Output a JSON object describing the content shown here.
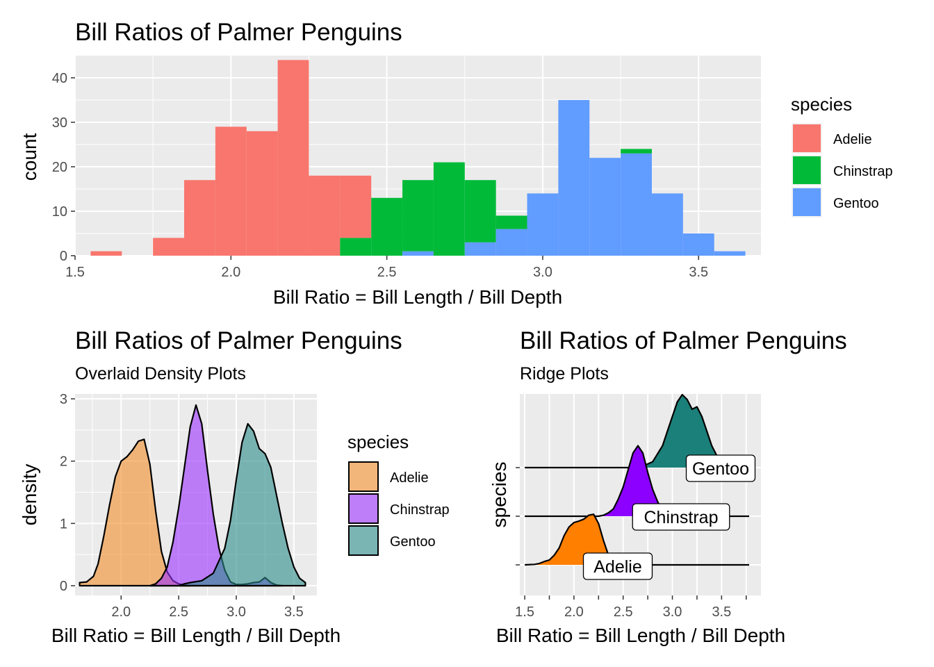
{
  "colors": {
    "panel_bg": "#ebebeb",
    "grid_major": "#ffffff",
    "adelie_hist": "#F8766D",
    "chinstrap_hist": "#00BA38",
    "gentoo_hist": "#619CFF",
    "adelie_density": "#F28E2B",
    "chinstrap_density": "#9B30FF",
    "gentoo_density": "#2A8C8A",
    "adelie_ridge": "#FF7F00",
    "chinstrap_ridge": "#8B00FF",
    "gentoo_ridge": "#1B8079"
  },
  "chart_data": [
    {
      "type": "bar",
      "subtype": "stacked histogram",
      "title": "Bill Ratios of Palmer Penguins",
      "subtitle": "",
      "xlabel": "Bill Ratio = Bill Length / Bill Depth",
      "ylabel": "count",
      "xlim": [
        1.5,
        3.7
      ],
      "ylim": [
        0,
        45
      ],
      "x_ticks": [
        1.5,
        2.0,
        2.5,
        3.0,
        3.5
      ],
      "x_tick_labels": [
        "1.5",
        "2.0",
        "2.5",
        "3.0",
        "3.5"
      ],
      "y_ticks": [
        0,
        10,
        20,
        30,
        40
      ],
      "y_tick_labels": [
        "0",
        "10",
        "20",
        "30",
        "40"
      ],
      "grid": true,
      "legend_title": "species",
      "legend_position": "right",
      "bin_edges": [
        1.55,
        1.65,
        1.75,
        1.85,
        1.95,
        2.05,
        2.15,
        2.25,
        2.35,
        2.45,
        2.55,
        2.65,
        2.75,
        2.85,
        2.95,
        3.05,
        3.15,
        3.25,
        3.35,
        3.45,
        3.55,
        3.65
      ],
      "series": [
        {
          "name": "Adelie",
          "values": [
            1,
            0,
            4,
            17,
            29,
            28,
            44,
            18,
            14,
            0,
            0,
            0,
            0,
            0,
            0,
            0,
            0,
            0,
            0,
            0,
            0
          ]
        },
        {
          "name": "Chinstrap",
          "values": [
            0,
            0,
            0,
            0,
            0,
            0,
            0,
            0,
            4,
            13,
            16,
            21,
            14,
            3,
            0,
            0,
            0,
            1,
            0,
            0,
            0
          ]
        },
        {
          "name": "Gentoo",
          "values": [
            0,
            0,
            0,
            0,
            0,
            0,
            0,
            0,
            0,
            0,
            1,
            0,
            3,
            6,
            14,
            35,
            22,
            23,
            14,
            5,
            1
          ]
        }
      ]
    },
    {
      "type": "area",
      "subtype": "overlaid density",
      "title": "Bill Ratios of Palmer Penguins",
      "subtitle": "Overlaid Density Plots",
      "xlabel": "Bill Ratio = Bill Length / Bill Depth",
      "ylabel": "density",
      "xlim": [
        1.6,
        3.7
      ],
      "ylim": [
        0,
        3
      ],
      "x_ticks": [
        2.0,
        2.5,
        3.0,
        3.5
      ],
      "x_tick_labels": [
        "2.0",
        "2.5",
        "3.0",
        "3.5"
      ],
      "y_ticks": [
        0,
        1,
        2,
        3
      ],
      "y_tick_labels": [
        "0",
        "1",
        "2",
        "3"
      ],
      "grid": true,
      "legend_title": "species",
      "legend_position": "right",
      "series": [
        {
          "name": "Adelie",
          "x": [
            1.64,
            1.7,
            1.76,
            1.8,
            1.85,
            1.9,
            1.95,
            2.0,
            2.05,
            2.1,
            2.15,
            2.2,
            2.25,
            2.3,
            2.35,
            2.4,
            2.45,
            2.5,
            2.55,
            2.6
          ],
          "y": [
            0.05,
            0.06,
            0.15,
            0.35,
            0.8,
            1.3,
            1.75,
            2.0,
            2.07,
            2.18,
            2.32,
            2.35,
            1.95,
            1.2,
            0.55,
            0.22,
            0.08,
            0.03,
            0.01,
            0
          ]
        },
        {
          "name": "Chinstrap",
          "x": [
            2.25,
            2.3,
            2.35,
            2.4,
            2.45,
            2.5,
            2.55,
            2.6,
            2.65,
            2.7,
            2.75,
            2.8,
            2.85,
            2.9,
            2.95,
            3.0,
            3.05,
            3.1,
            3.15,
            3.2,
            3.25,
            3.3,
            3.35,
            3.4
          ],
          "y": [
            0,
            0.03,
            0.12,
            0.3,
            0.7,
            1.25,
            1.9,
            2.55,
            2.9,
            2.6,
            1.85,
            1.15,
            0.6,
            0.25,
            0.06,
            0.02,
            0.02,
            0.03,
            0.05,
            0.06,
            0.13,
            0.05,
            0.01,
            0
          ]
        },
        {
          "name": "Gentoo",
          "x": [
            2.5,
            2.55,
            2.6,
            2.7,
            2.8,
            2.9,
            2.95,
            3.0,
            3.05,
            3.1,
            3.15,
            3.2,
            3.25,
            3.3,
            3.35,
            3.4,
            3.45,
            3.5,
            3.55,
            3.6
          ],
          "y": [
            0,
            0.03,
            0.05,
            0.08,
            0.2,
            0.6,
            1.05,
            1.7,
            2.3,
            2.6,
            2.48,
            2.2,
            2.12,
            1.9,
            1.45,
            1.0,
            0.6,
            0.3,
            0.12,
            0.05
          ]
        }
      ]
    },
    {
      "type": "area",
      "subtype": "ridgeline",
      "title": "Bill Ratios of Palmer Penguins",
      "subtitle": "Ridge Plots",
      "xlabel": "Bill Ratio = Bill Length / Bill Depth",
      "ylabel": "species",
      "xlim": [
        1.45,
        3.9
      ],
      "x_ticks": [
        1.5,
        2.0,
        2.5,
        3.0,
        3.5
      ],
      "x_tick_labels": [
        "1.5",
        "2.0",
        "2.5",
        "3.0",
        "3.5"
      ],
      "minor_x_ticks": [
        1.75,
        2.25,
        2.75,
        3.25,
        3.75
      ],
      "minor_x_tick_labels": [
        "",
        "",
        "",
        "",
        ""
      ],
      "categories": [
        "Adelie",
        "Chinstrap",
        "Gentoo"
      ],
      "grid": true,
      "legend_position": "none",
      "series": [
        {
          "name": "Adelie",
          "label": "Adelie",
          "x": [
            1.5,
            1.6,
            1.65,
            1.7,
            1.75,
            1.8,
            1.85,
            1.9,
            1.95,
            2.0,
            2.05,
            2.1,
            2.15,
            2.2,
            2.25,
            2.3,
            2.35,
            2.4,
            2.45,
            2.5,
            3.78
          ],
          "y": [
            0,
            0.01,
            0.03,
            0.07,
            0.1,
            0.2,
            0.35,
            0.6,
            0.78,
            0.87,
            0.9,
            0.94,
            1.02,
            1.04,
            0.85,
            0.5,
            0.2,
            0.06,
            0.02,
            0,
            0
          ]
        },
        {
          "name": "Chinstrap",
          "label": "Chinstrap",
          "x": [
            1.5,
            2.25,
            2.3,
            2.35,
            2.4,
            2.45,
            2.5,
            2.55,
            2.6,
            2.65,
            2.7,
            2.75,
            2.8,
            2.85,
            2.9,
            2.95,
            3.0,
            3.05,
            3.78
          ],
          "y": [
            0,
            0,
            0.02,
            0.07,
            0.15,
            0.35,
            0.6,
            0.95,
            1.3,
            1.45,
            1.3,
            0.9,
            0.55,
            0.3,
            0.1,
            0.02,
            0,
            0,
            0
          ]
        },
        {
          "name": "Gentoo",
          "label": "Gentoo",
          "x": [
            1.5,
            2.6,
            2.7,
            2.8,
            2.9,
            2.95,
            3.0,
            3.05,
            3.1,
            3.15,
            3.2,
            3.25,
            3.3,
            3.35,
            3.4,
            3.45,
            3.5,
            3.55,
            3.6,
            3.78
          ],
          "y": [
            0,
            0,
            0.03,
            0.12,
            0.45,
            0.75,
            1.05,
            1.35,
            1.5,
            1.4,
            1.2,
            1.25,
            1.05,
            0.75,
            0.45,
            0.25,
            0.1,
            0.03,
            0,
            0
          ]
        }
      ]
    }
  ]
}
